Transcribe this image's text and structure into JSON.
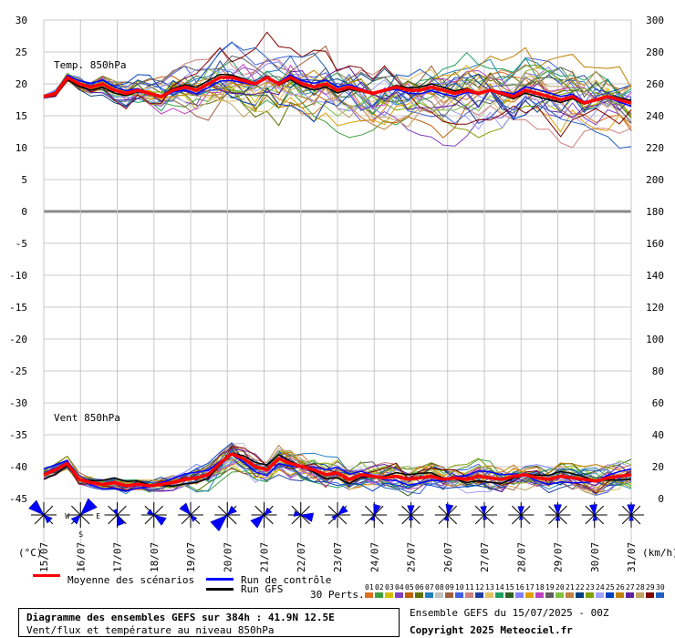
{
  "chart_data": {
    "type": "line",
    "title": "Diagramme des ensembles GEFS sur 384h : 41.9N 12.5E",
    "subtitle": "Vent/flux et température au niveau 850hPa",
    "panel_temp_label": "Temp. 850hPa",
    "panel_wind_label": "Vent 850hPa",
    "left_axis_unit": "(°C)",
    "right_axis_unit": "(km/h)",
    "left_ticks": [
      30,
      25,
      20,
      15,
      10,
      5,
      0,
      -5,
      -10,
      -15,
      -20,
      -25,
      -30,
      -35,
      -40,
      -45
    ],
    "right_ticks": [
      300,
      280,
      260,
      240,
      220,
      200,
      180,
      160,
      140,
      120,
      100,
      80,
      60,
      40,
      20,
      0
    ],
    "x_ticks": [
      "15/07",
      "16/07",
      "17/07",
      "18/07",
      "19/07",
      "20/07",
      "21/07",
      "22/07",
      "23/07",
      "24/07",
      "25/07",
      "26/07",
      "27/07",
      "28/07",
      "29/07",
      "30/07",
      "31/07"
    ],
    "wind_rose_dirs": [
      "W",
      "E",
      "S"
    ],
    "mean_temp": [
      18,
      18.5,
      21,
      20,
      19.5,
      20,
      19,
      18.5,
      19,
      18.5,
      18,
      19,
      19.5,
      19,
      20,
      21,
      21,
      20.5,
      20,
      21,
      20,
      21,
      20,
      19.5,
      20,
      19,
      19.5,
      19,
      18.5,
      19,
      19.5,
      19,
      19,
      19.5,
      19,
      18.5,
      19,
      18.5,
      19,
      18.5,
      18,
      19,
      18.5,
      18,
      17.5,
      18,
      17,
      17.5,
      18,
      17.5,
      17
    ],
    "mean_wind": [
      15,
      18,
      22,
      12,
      10,
      9,
      10,
      8,
      9,
      8,
      9,
      10,
      12,
      13,
      15,
      22,
      28,
      25,
      20,
      18,
      25,
      22,
      20,
      18,
      15,
      16,
      12,
      15,
      14,
      13,
      14,
      12,
      13,
      14,
      12,
      13,
      12,
      14,
      13,
      12,
      14,
      15,
      13,
      12,
      14,
      13,
      12,
      11,
      13,
      14,
      15
    ],
    "legend": {
      "mean": "Moyenne des scénarios",
      "control": "Run de contrôle",
      "gfs": "Run GFS",
      "perts": "30 Perts."
    },
    "pert_numbers": [
      "01",
      "02",
      "03",
      "04",
      "05",
      "06",
      "07",
      "08",
      "09",
      "10",
      "11",
      "12",
      "13",
      "14",
      "15",
      "16",
      "17",
      "18",
      "19",
      "20",
      "21",
      "22",
      "23",
      "24",
      "25",
      "26",
      "27",
      "28",
      "29",
      "30"
    ],
    "pert_colors": [
      "#e07020",
      "#40a040",
      "#d0c000",
      "#8040c0",
      "#c06000",
      "#607000",
      "#2080c0",
      "#c0c0c0",
      "#a06040",
      "#4060e0",
      "#d08080",
      "#2040a0",
      "#e0c060",
      "#20a060",
      "#306020",
      "#8080ff",
      "#e0a000",
      "#c040c0",
      "#606060",
      "#80c040",
      "#c08040",
      "#004080",
      "#80a000",
      "#a0a0ff",
      "#0040c0",
      "#c08000",
      "#6020a0",
      "#c0a060",
      "#800000",
      "#2060c0"
    ],
    "mean_color": "#ff0000",
    "control_color": "#0000ff",
    "gfs_color": "#000000"
  },
  "footer": {
    "ensemble": "Ensemble GEFS du 15/07/2025 - 00Z",
    "copyright": "Copyright 2025 Meteociel.fr"
  }
}
